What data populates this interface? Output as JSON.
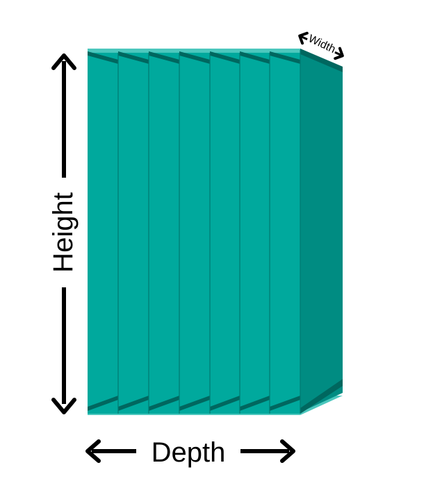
{
  "labels": {
    "height": "Height",
    "depth": "Depth",
    "width": "Width"
  },
  "colors": {
    "slat_face": "#00A99D",
    "slat_side": "#008C82",
    "slat_top": "#4CC7BD",
    "slat_shadow": "#00675F",
    "divider": "#007A71",
    "arrow": "#000000"
  },
  "slat_count": 8
}
